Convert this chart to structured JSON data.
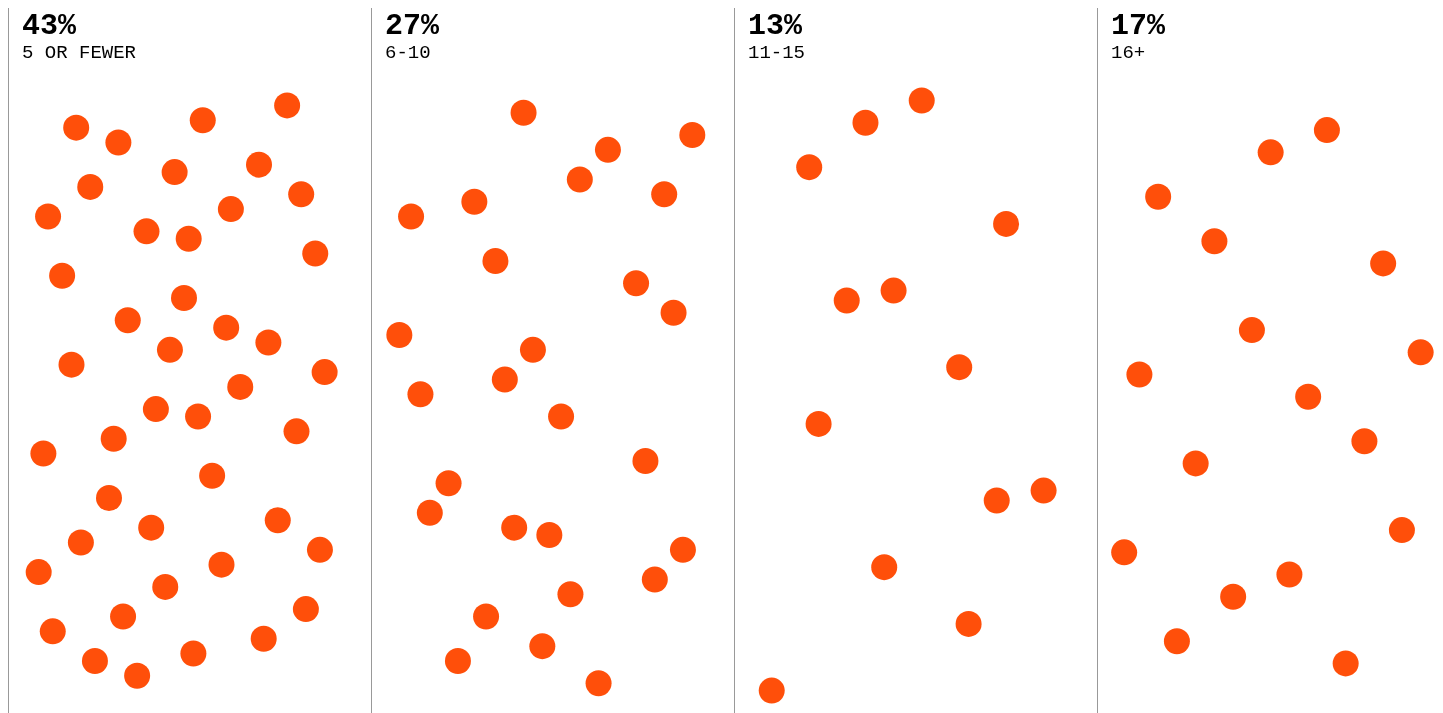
{
  "chart_data": {
    "type": "other",
    "categories": [
      "5 OR FEWER",
      "6-10",
      "11-15",
      "16+"
    ],
    "values": [
      43,
      27,
      13,
      17
    ],
    "value_labels": [
      "43%",
      "27%",
      "13%",
      "17%"
    ],
    "color": "#ff4f0a"
  }
}
